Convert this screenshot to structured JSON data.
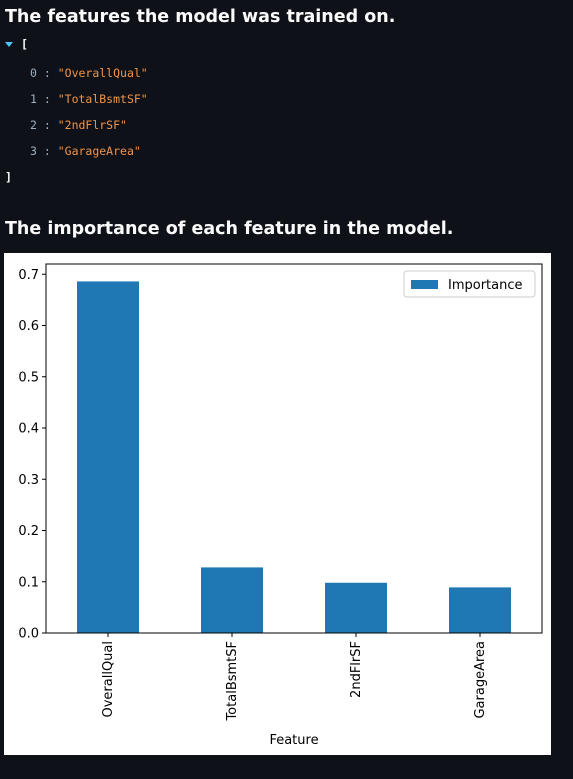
{
  "headings": {
    "features": "The features the model was trained on.",
    "importance": "The importance of each feature in the model."
  },
  "json_view": {
    "open_bracket": "[",
    "close_bracket": "]",
    "items": [
      {
        "index": "0",
        "value": "\"OverallQual\""
      },
      {
        "index": "1",
        "value": "\"TotalBsmtSF\""
      },
      {
        "index": "2",
        "value": "\"2ndFlrSF\""
      },
      {
        "index": "3",
        "value": "\"GarageArea\""
      }
    ]
  },
  "colors": {
    "background": "#0e1117",
    "bar": "#1f77b4",
    "json_string": "#f0944a",
    "json_caret": "#4fc3f7"
  },
  "chart_data": {
    "type": "bar",
    "categories": [
      "OverallQual",
      "TotalBsmtSF",
      "2ndFlrSF",
      "GarageArea"
    ],
    "series": [
      {
        "name": "Importance",
        "values": [
          0.686,
          0.128,
          0.098,
          0.089
        ]
      }
    ],
    "xlabel": "Feature",
    "ylabel": "",
    "ylim": [
      0,
      0.72
    ],
    "yticks": [
      "0.0",
      "0.1",
      "0.2",
      "0.3",
      "0.4",
      "0.5",
      "0.6",
      "0.7"
    ],
    "legend": "top-right",
    "grid": false
  }
}
